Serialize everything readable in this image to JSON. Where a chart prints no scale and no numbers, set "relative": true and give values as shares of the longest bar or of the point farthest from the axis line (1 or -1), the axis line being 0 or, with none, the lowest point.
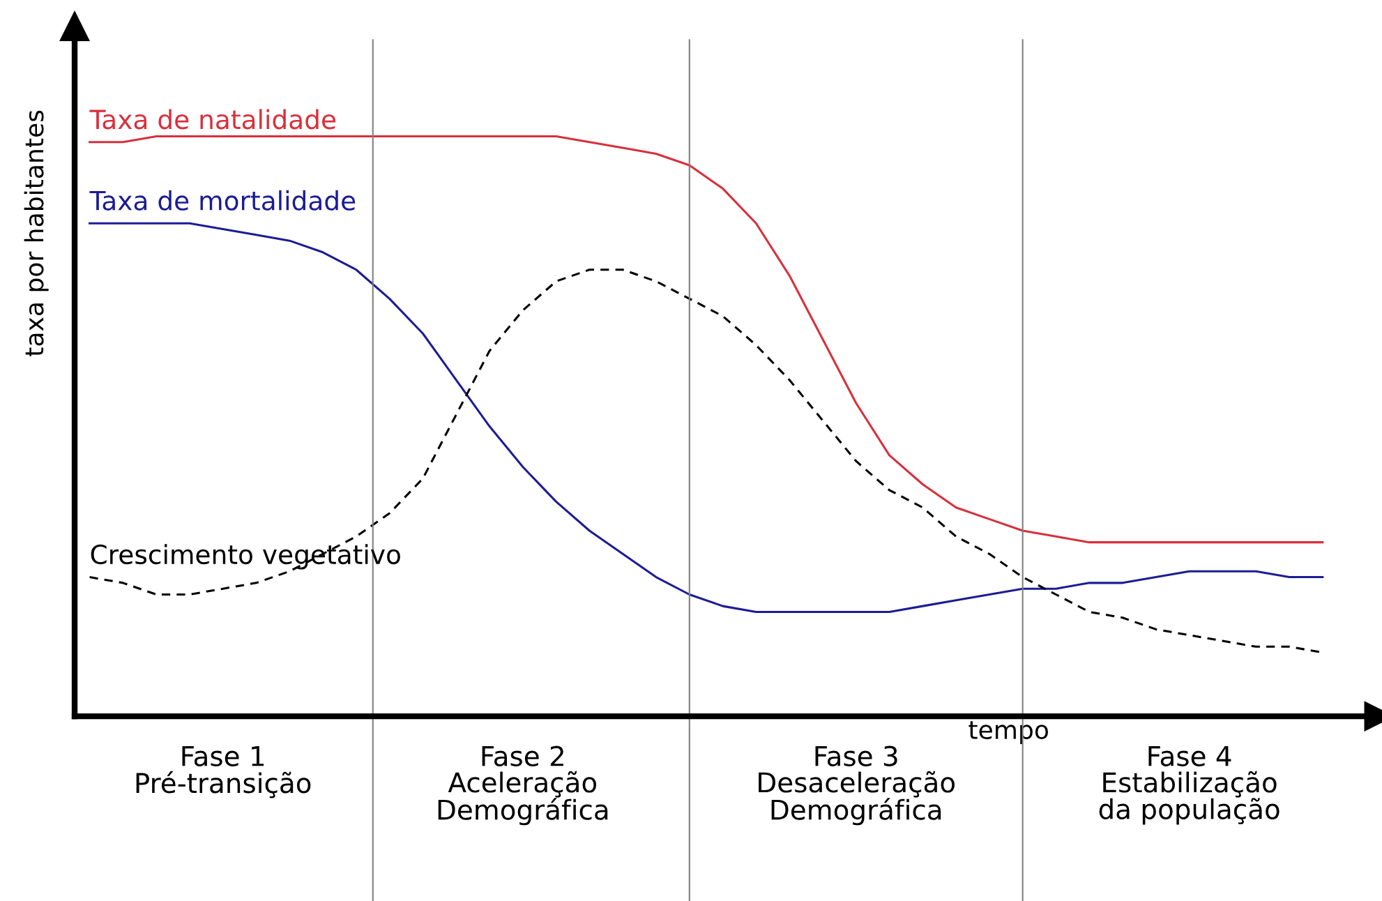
{
  "chart_data": {
    "type": "line",
    "relative": true,
    "ylabel": "taxa por habitantes",
    "xlabel": "tempo",
    "tick_labels": "x",
    "categories": [
      null,
      null,
      null,
      null,
      "Fase 1\nPré-transição",
      null,
      null,
      null,
      null,
      null,
      null,
      null,
      null,
      "Fase 2\nAceleração\nDemográfica",
      null,
      null,
      null,
      null,
      null,
      null,
      null,
      null,
      null,
      "Fase 3\nDesaceleração\nDemográfica",
      null,
      null,
      null,
      null,
      null,
      null,
      null,
      null,
      null,
      "Fase 4\nEstabilização\nda população",
      null,
      null,
      null,
      null
    ],
    "series": [
      {
        "name": "Taxa de natalidade",
        "color": "#d8303c",
        "line_style": "solid",
        "values": [
          0.99,
          0.99,
          1.0,
          1.0,
          1.0,
          1.0,
          1.0,
          1.0,
          1.0,
          1.0,
          1.0,
          1.0,
          1.0,
          1.0,
          1.0,
          0.99,
          0.98,
          0.97,
          0.95,
          0.91,
          0.85,
          0.76,
          0.65,
          0.54,
          0.45,
          0.4,
          0.36,
          0.34,
          0.32,
          0.31,
          0.3,
          0.3,
          0.3,
          0.3,
          0.3,
          0.3,
          0.3,
          0.3
        ]
      },
      {
        "name": "Taxa de mortalidade",
        "color": "#1c1c96",
        "line_style": "solid",
        "values": [
          0.85,
          0.85,
          0.85,
          0.85,
          0.84,
          0.83,
          0.82,
          0.8,
          0.77,
          0.72,
          0.66,
          0.58,
          0.5,
          0.43,
          0.37,
          0.32,
          0.28,
          0.24,
          0.21,
          0.19,
          0.18,
          0.18,
          0.18,
          0.18,
          0.18,
          0.19,
          0.2,
          0.21,
          0.22,
          0.22,
          0.23,
          0.23,
          0.24,
          0.25,
          0.25,
          0.25,
          0.24,
          0.24
        ]
      },
      {
        "name": "Crescimento vegetativo",
        "color": "#000000",
        "line_style": "dashed",
        "values": [
          0.24,
          0.23,
          0.21,
          0.21,
          0.22,
          0.23,
          0.25,
          0.28,
          0.31,
          0.35,
          0.41,
          0.52,
          0.63,
          0.7,
          0.75,
          0.77,
          0.77,
          0.75,
          0.72,
          0.69,
          0.64,
          0.58,
          0.51,
          0.44,
          0.39,
          0.36,
          0.31,
          0.28,
          0.24,
          0.21,
          0.18,
          0.17,
          0.15,
          0.14,
          0.13,
          0.12,
          0.12,
          0.11
        ]
      }
    ]
  }
}
